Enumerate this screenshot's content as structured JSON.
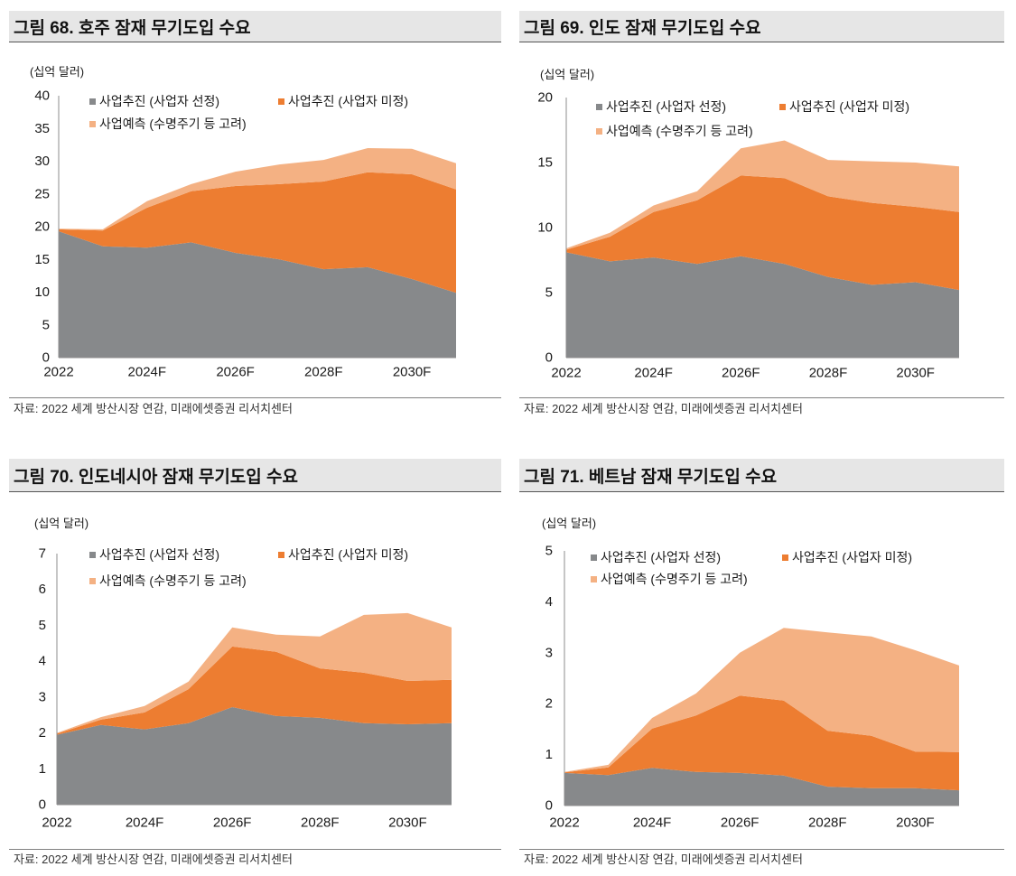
{
  "chart_data": [
    {
      "type": "area",
      "stacked": true,
      "title": "그림 68. 호주 잠재 무기도입 수요",
      "unit_label": "(십억 달러)",
      "x": [
        2022,
        2023,
        2024,
        2025,
        2026,
        2027,
        2028,
        2029,
        2030,
        2031
      ],
      "xticks": [
        2022,
        2024,
        2026,
        2028,
        2030
      ],
      "xtick_labels": [
        "2022",
        "2024F",
        "2026F",
        "2028F",
        "2030F"
      ],
      "ylim": [
        0,
        40
      ],
      "yticks": [
        0,
        5,
        10,
        15,
        20,
        25,
        30,
        35,
        40
      ],
      "grid": false,
      "legend_position": "top-left",
      "series": [
        {
          "name": "사업추진 (사업자 선정)",
          "color": "#87898b",
          "values": [
            19.3,
            17.0,
            16.8,
            17.6,
            16.0,
            15.0,
            13.5,
            13.8,
            12.0,
            9.9
          ]
        },
        {
          "name": "사업추진 (사업자 미정)",
          "color": "#ed7d31",
          "values": [
            0.3,
            2.4,
            6.1,
            7.8,
            10.2,
            11.5,
            13.4,
            14.5,
            16.0,
            15.8
          ]
        },
        {
          "name": "사업예측 (수명주기 등 고려)",
          "color": "#f4b183",
          "values": [
            0.1,
            0.2,
            1.0,
            1.1,
            2.2,
            3.0,
            3.3,
            3.7,
            3.9,
            4.0
          ]
        }
      ],
      "source": "자료: 2022 세계 방산시장 연감, 미래에셋증권 리서치센터"
    },
    {
      "type": "area",
      "stacked": true,
      "title": "그림 69. 인도 잠재 무기도입 수요",
      "unit_label": "(십억 달러)",
      "x": [
        2022,
        2023,
        2024,
        2025,
        2026,
        2027,
        2028,
        2029,
        2030,
        2031
      ],
      "xticks": [
        2022,
        2024,
        2026,
        2028,
        2030
      ],
      "xtick_labels": [
        "2022",
        "2024F",
        "2026F",
        "2028F",
        "2030F"
      ],
      "ylim": [
        0,
        20
      ],
      "yticks": [
        0,
        5,
        10,
        15,
        20
      ],
      "grid": false,
      "legend_position": "top-left",
      "series": [
        {
          "name": "사업추진 (사업자 선정)",
          "color": "#87898b",
          "values": [
            8.1,
            7.4,
            7.7,
            7.2,
            7.8,
            7.2,
            6.2,
            5.6,
            5.8,
            5.2
          ]
        },
        {
          "name": "사업추진 (사업자 미정)",
          "color": "#ed7d31",
          "values": [
            0.2,
            1.9,
            3.5,
            4.9,
            6.2,
            6.6,
            6.2,
            6.3,
            5.8,
            6.0
          ]
        },
        {
          "name": "사업예측 (수명주기 등 고려)",
          "color": "#f4b183",
          "values": [
            0.1,
            0.3,
            0.5,
            0.7,
            2.1,
            2.9,
            2.8,
            3.2,
            3.4,
            3.5
          ]
        }
      ],
      "source": "자료: 2022 세계 방산시장 연감, 미래에셋증권 리서치센터"
    },
    {
      "type": "area",
      "stacked": true,
      "title": "그림 70. 인도네시아 잠재 무기도입 수요",
      "unit_label": "(십억 달러)",
      "x": [
        2022,
        2023,
        2024,
        2025,
        2026,
        2027,
        2028,
        2029,
        2030,
        2031
      ],
      "xticks": [
        2022,
        2024,
        2026,
        2028,
        2030
      ],
      "xtick_labels": [
        "2022",
        "2024F",
        "2026F",
        "2028F",
        "2030F"
      ],
      "ylim": [
        0,
        7
      ],
      "yticks": [
        0,
        1,
        2,
        3,
        4,
        5,
        6,
        7
      ],
      "grid": false,
      "legend_position": "top-left",
      "series": [
        {
          "name": "사업추진 (사업자 선정)",
          "color": "#87898b",
          "values": [
            1.95,
            2.22,
            2.1,
            2.27,
            2.72,
            2.47,
            2.42,
            2.27,
            2.24,
            2.27
          ]
        },
        {
          "name": "사업추진 (사업자 미정)",
          "color": "#ed7d31",
          "values": [
            0.03,
            0.15,
            0.47,
            0.95,
            1.69,
            1.79,
            1.38,
            1.41,
            1.21,
            1.21
          ]
        },
        {
          "name": "사업예측 (수명주기 등 고려)",
          "color": "#f4b183",
          "values": [
            0.02,
            0.07,
            0.18,
            0.21,
            0.53,
            0.48,
            0.89,
            1.61,
            1.89,
            1.46
          ]
        }
      ],
      "source": "자료: 2022 세계 방산시장 연감, 미래에셋증권 리서치센터"
    },
    {
      "type": "area",
      "stacked": true,
      "title": "그림 71. 베트남 잠재 무기도입 수요",
      "unit_label": "(십억 달러)",
      "x": [
        2022,
        2023,
        2024,
        2025,
        2026,
        2027,
        2028,
        2029,
        2030,
        2031
      ],
      "xticks": [
        2022,
        2024,
        2026,
        2028,
        2030
      ],
      "xtick_labels": [
        "2022",
        "2024F",
        "2026F",
        "2028F",
        "2030F"
      ],
      "ylim": [
        0,
        5
      ],
      "yticks": [
        0,
        1,
        2,
        3,
        4,
        5
      ],
      "grid": false,
      "legend_position": "top-left",
      "series": [
        {
          "name": "사업추진 (사업자 선정)",
          "color": "#87898b",
          "values": [
            0.64,
            0.6,
            0.74,
            0.66,
            0.64,
            0.59,
            0.37,
            0.34,
            0.34,
            0.3
          ]
        },
        {
          "name": "사업추진 (사업자 미정)",
          "color": "#ed7d31",
          "values": [
            0.01,
            0.15,
            0.77,
            1.11,
            1.52,
            1.47,
            1.1,
            1.03,
            0.72,
            0.75
          ]
        },
        {
          "name": "사업예측 (수명주기 등 고려)",
          "color": "#f4b183",
          "values": [
            0.01,
            0.05,
            0.21,
            0.43,
            0.84,
            1.43,
            1.93,
            1.95,
            1.99,
            1.7
          ]
        }
      ],
      "source": "자료: 2022 세계 방산시장 연감, 미래에셋증권 리서치센터"
    }
  ]
}
